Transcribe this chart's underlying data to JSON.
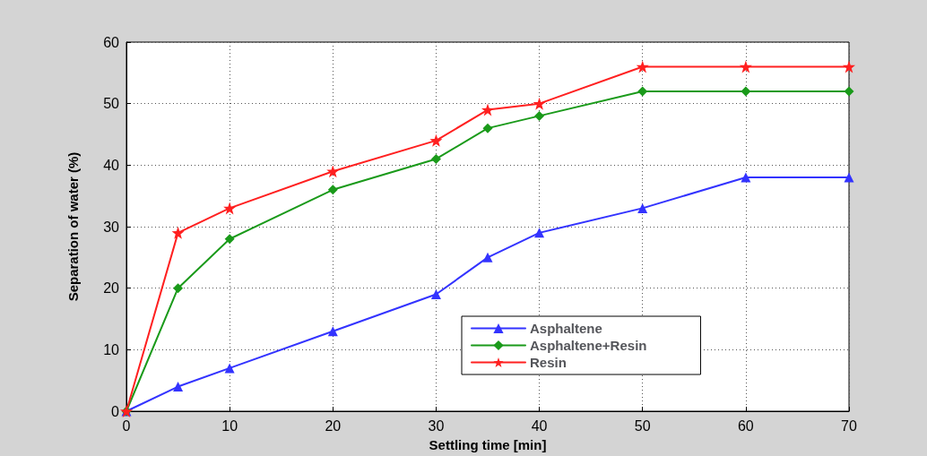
{
  "chart_data": {
    "type": "line",
    "xlabel": "Settling time [min]",
    "ylabel": "Separation of water (%)",
    "x": [
      0,
      5,
      10,
      20,
      30,
      35,
      40,
      50,
      60,
      70
    ],
    "series": [
      {
        "name": "Asphaltene",
        "color": "#3333ff",
        "marker": "triangle",
        "values": [
          0,
          4,
          7,
          13,
          19,
          25,
          29,
          33,
          38,
          38
        ]
      },
      {
        "name": "Asphaltene+Resin",
        "color": "#1a9a1a",
        "marker": "diamond",
        "values": [
          0,
          20,
          28,
          36,
          41,
          46,
          48,
          52,
          52,
          52
        ]
      },
      {
        "name": "Resin",
        "color": "#ff2020",
        "marker": "star",
        "values": [
          0,
          29,
          33,
          39,
          44,
          49,
          50,
          56,
          56,
          56
        ]
      }
    ],
    "xlim": [
      0,
      70
    ],
    "xticks": [
      0,
      10,
      20,
      30,
      40,
      50,
      60,
      70
    ],
    "ylim": [
      0,
      60
    ],
    "yticks": [
      0,
      10,
      20,
      30,
      40,
      50,
      60
    ],
    "grid": true,
    "legend": "bottom right",
    "line_style": "solid"
  }
}
